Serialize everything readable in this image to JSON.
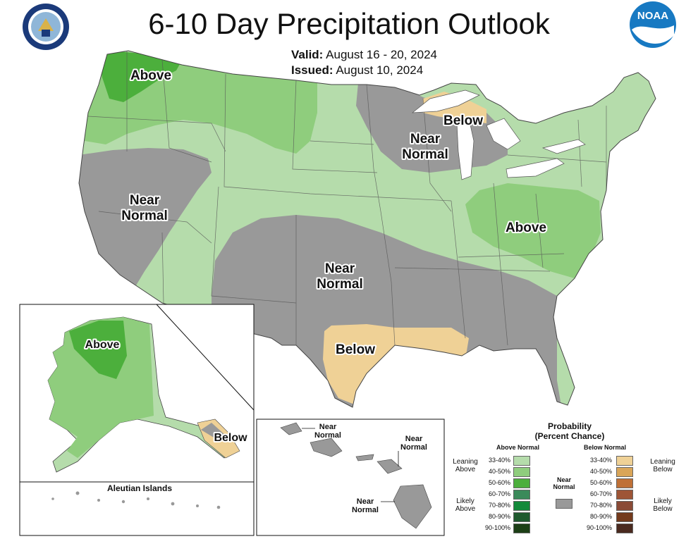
{
  "header": {
    "title": "6-10 Day Precipitation Outlook",
    "valid_label": "Valid:",
    "valid_dates": "August 16 - 20, 2024",
    "issued_label": "Issued:",
    "issued_date": "August 10, 2024"
  },
  "logos": {
    "left": "Department of Commerce seal",
    "left_text": "DEPARTMENT OF COMMERCE · UNITED STATES OF AMERICA",
    "right": "NOAA",
    "right_text": "NOAA"
  },
  "conus_labels": {
    "pacific_nw": "Above",
    "great_basin_line1": "Near",
    "great_basin_line2": "Normal",
    "upper_midwest_line1": "Near",
    "upper_midwest_line2": "Normal",
    "michigan_up": "Below",
    "southern_plains_line1": "Near",
    "southern_plains_line2": "Normal",
    "mid_atlantic": "Above",
    "texas": "Below"
  },
  "alaska_labels": {
    "west": "Above",
    "southeast": "Below",
    "aleutian_title": "Aleutian Islands"
  },
  "hawaii_labels": {
    "kauai_line1": "Near",
    "kauai_line2": "Normal",
    "maui_line1": "Near",
    "maui_line2": "Normal",
    "big_island_line1": "Near",
    "big_island_line2": "Normal"
  },
  "legend": {
    "title_line1": "Probability",
    "title_line2": "(Percent Chance)",
    "above_header": "Above Normal",
    "below_header": "Below Normal",
    "leaning_above_line1": "Leaning",
    "leaning_above_line2": "Above",
    "likely_above_line1": "Likely",
    "likely_above_line2": "Above",
    "leaning_below_line1": "Leaning",
    "leaning_below_line2": "Below",
    "likely_below_line1": "Likely",
    "likely_below_line2": "Below",
    "near_normal_line1": "Near",
    "near_normal_line2": "Normal",
    "near_normal_color": "#999999",
    "above_bins": [
      {
        "label": "33-40%",
        "color": "#b5dcab"
      },
      {
        "label": "40-50%",
        "color": "#8fcd7d"
      },
      {
        "label": "50-60%",
        "color": "#4caf3c"
      },
      {
        "label": "60-70%",
        "color": "#3b8a5a"
      },
      {
        "label": "70-80%",
        "color": "#138a3a"
      },
      {
        "label": "80-90%",
        "color": "#1f5a2e"
      },
      {
        "label": "90-100%",
        "color": "#1c3f16"
      }
    ],
    "below_bins": [
      {
        "label": "33-40%",
        "color": "#efd196"
      },
      {
        "label": "40-50%",
        "color": "#d9a558"
      },
      {
        "label": "50-60%",
        "color": "#bf7036"
      },
      {
        "label": "60-70%",
        "color": "#9e5536"
      },
      {
        "label": "70-80%",
        "color": "#8a4a36"
      },
      {
        "label": "80-90%",
        "color": "#733a1c"
      },
      {
        "label": "90-100%",
        "color": "#4a2a1f"
      }
    ]
  },
  "colors": {
    "leaning_above": "#b5dcab",
    "above_40_50": "#8fcd7d",
    "above_50_60": "#4caf3c",
    "near_normal": "#999999",
    "leaning_below": "#efd196",
    "below_40_50": "#d9a558"
  }
}
